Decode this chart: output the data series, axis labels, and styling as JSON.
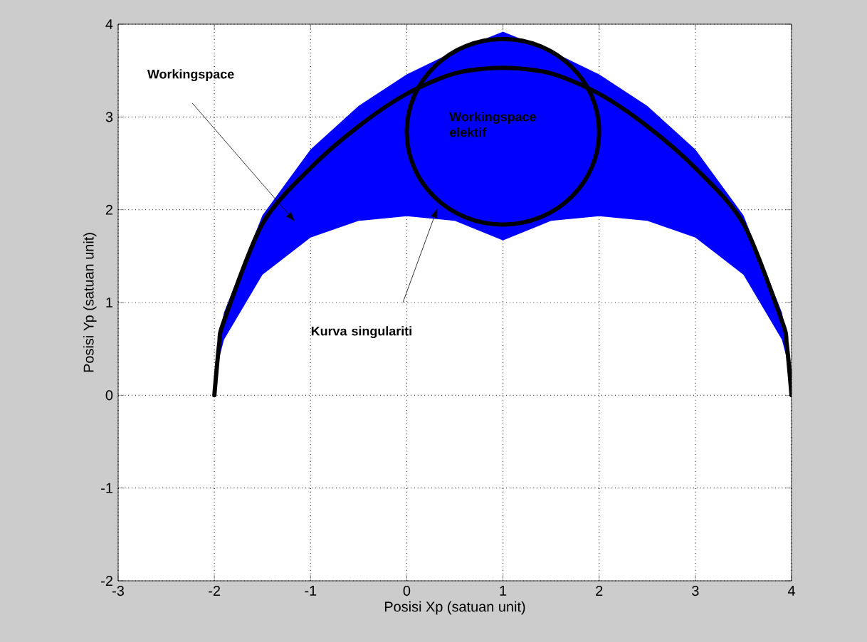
{
  "chart_data": {
    "type": "line",
    "xlabel": "Posisi Xp (satuan unit)",
    "ylabel": "Posisi Yp (satuan unit)",
    "xlim": [
      -3,
      4
    ],
    "ylim": [
      -2,
      4
    ],
    "xticks": [
      -3,
      -2,
      -1,
      0,
      1,
      2,
      3,
      4
    ],
    "yticks": [
      -2,
      -1,
      0,
      1,
      2,
      3,
      4
    ],
    "grid": true,
    "line_style": "solid",
    "series": [
      {
        "color": "#000000",
        "colors": [
          "#0000ff",
          "#0000ff",
          "#0000ff",
          "#0000ff",
          "#0000ff",
          "#0000ff",
          "#0000ff",
          "#0000ff",
          "#0000ff",
          "#0000ff",
          "#0000ff",
          "#0000ff",
          "#0000ff",
          "#0000ff",
          "#0000ff",
          "#0000ff",
          "#0000ff"
        ],
        "x": [
          -2,
          -1.95,
          -1.9,
          -1.5,
          -1,
          -0.5,
          0,
          0.5,
          1,
          1.5,
          2,
          2.5,
          3,
          3.5,
          3.9,
          3.95,
          4
        ],
        "values": [
          0,
          0.55,
          0.8,
          1.85,
          2.45,
          2.9,
          3.25,
          3.47,
          3.53,
          3.47,
          3.25,
          2.9,
          2.45,
          1.85,
          0.8,
          0.55,
          0
        ],
        "lower": [
          0,
          0.4,
          0.6,
          1.3,
          1.7,
          1.88,
          1.93,
          1.88,
          1.67,
          1.88,
          1.93,
          1.88,
          1.7,
          1.3,
          0.6,
          0.4,
          0
        ],
        "upper": [
          0,
          0.62,
          0.89,
          1.94,
          2.65,
          3.12,
          3.46,
          3.71,
          3.92,
          3.71,
          3.46,
          3.12,
          2.65,
          1.94,
          0.89,
          0.62,
          0
        ]
      }
    ],
    "annotations": [
      "Workingspace",
      "Workingspace elektif",
      "Kurva singulariti"
    ]
  }
}
